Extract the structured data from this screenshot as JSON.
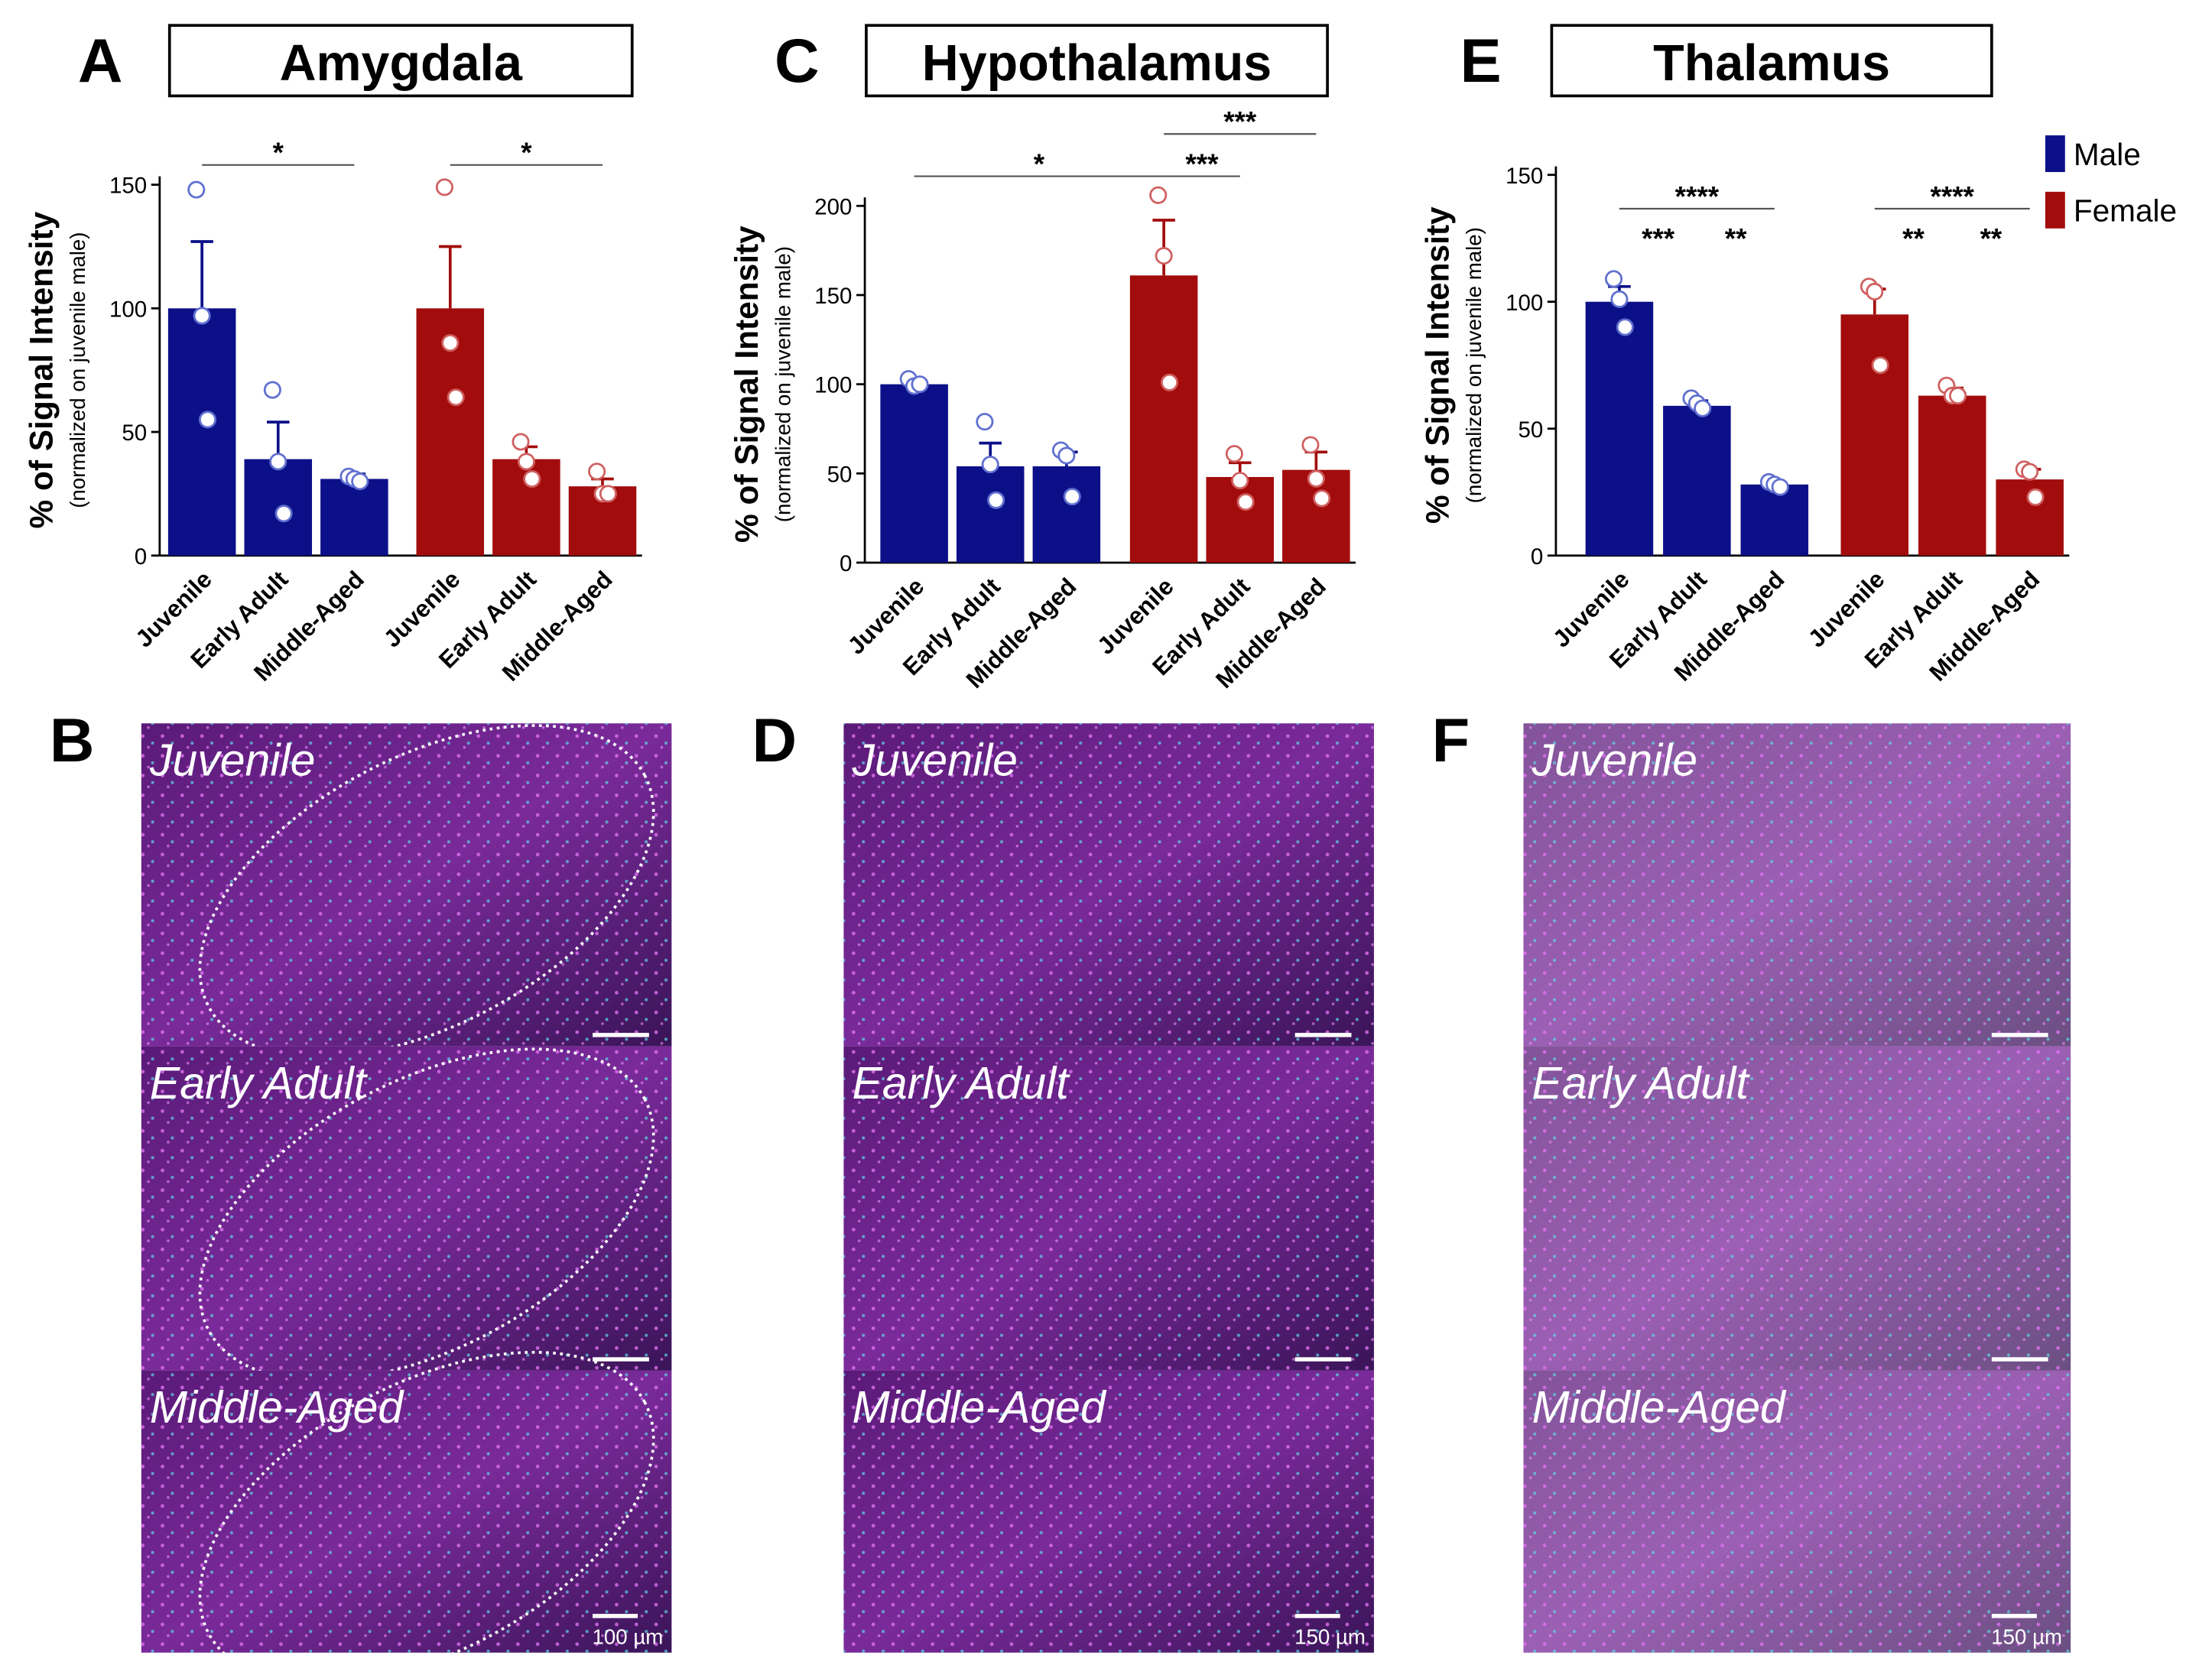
{
  "chart_data": [
    {
      "type": "bar",
      "panel": "A",
      "title": "Amygdala",
      "ylabel": "% of Signal Intensity",
      "ylabel_sub": "(normalized on juvenile male)",
      "categories": [
        "Juvenile",
        "Early Adult",
        "Middle-Aged"
      ],
      "ylim": [
        0,
        150
      ],
      "yticks": [
        0,
        50,
        100,
        150
      ],
      "legend": false,
      "series": [
        {
          "name": "Male",
          "color": "#0c1088",
          "values": [
            100,
            39,
            31
          ],
          "errors": [
            27,
            15,
            2
          ],
          "points": [
            [
              148,
              97,
              55
            ],
            [
              67,
              38,
              17
            ],
            [
              32,
              31,
              30
            ]
          ]
        },
        {
          "name": "Female",
          "color": "#a30c0c",
          "values": [
            100,
            39,
            28
          ],
          "errors": [
            25,
            5,
            3
          ],
          "points": [
            [
              149,
              86,
              64
            ],
            [
              46,
              38,
              31
            ],
            [
              34,
              25,
              25
            ]
          ]
        }
      ],
      "significance": [
        {
          "label": "*",
          "bars": [
            0,
            2
          ],
          "bracket": true
        },
        {
          "label": "*",
          "bars": [
            3,
            5
          ],
          "bracket": true
        }
      ]
    },
    {
      "type": "bar",
      "panel": "C",
      "title": "Hypothalamus",
      "ylabel": "% of Signal Intensity",
      "ylabel_sub": "(normalized on juvenile male)",
      "categories": [
        "Juvenile",
        "Early Adult",
        "Middle-Aged"
      ],
      "ylim": [
        0,
        200
      ],
      "yticks": [
        0,
        50,
        100,
        150,
        200
      ],
      "legend": false,
      "series": [
        {
          "name": "Male",
          "color": "#0c1088",
          "values": [
            100,
            54,
            54
          ],
          "errors": [
            3,
            13,
            8
          ],
          "points": [
            [
              103,
              99,
              100
            ],
            [
              79,
              55,
              35
            ],
            [
              63,
              60,
              37
            ]
          ]
        },
        {
          "name": "Female",
          "color": "#a30c0c",
          "values": [
            161,
            48,
            52
          ],
          "errors": [
            31,
            8,
            10
          ],
          "points": [
            [
              206,
              172,
              101
            ],
            [
              61,
              46,
              34
            ],
            [
              66,
              47,
              36
            ]
          ]
        }
      ],
      "significance": [
        {
          "label": "*",
          "bars": [
            0,
            3
          ],
          "bracket": true
        },
        {
          "label": "***",
          "bars": [
            3,
            4
          ],
          "bracket": true
        },
        {
          "label": "***",
          "bars": [
            3,
            5
          ],
          "bracket": true
        }
      ]
    },
    {
      "type": "bar",
      "panel": "E",
      "title": "Thalamus",
      "ylabel": "% of Signal Intensity",
      "ylabel_sub": "(normalized on juvenile male)",
      "categories": [
        "Juvenile",
        "Early Adult",
        "Middle-Aged"
      ],
      "ylim": [
        0,
        150
      ],
      "yticks": [
        0,
        50,
        100,
        150
      ],
      "legend": true,
      "series": [
        {
          "name": "Male",
          "color": "#0c1088",
          "values": [
            100,
            59,
            28
          ],
          "errors": [
            6,
            2,
            1
          ],
          "points": [
            [
              109,
              101,
              90
            ],
            [
              62,
              60,
              58
            ],
            [
              29,
              28,
              27
            ]
          ]
        },
        {
          "name": "Female",
          "color": "#a30c0c",
          "values": [
            95,
            63,
            30
          ],
          "errors": [
            10,
            3,
            4
          ],
          "points": [
            [
              106,
              104,
              75
            ],
            [
              67,
              63,
              63
            ],
            [
              34,
              33,
              23
            ]
          ]
        }
      ],
      "significance": [
        {
          "label": "***",
          "bars": [
            0,
            1
          ],
          "bracket": false
        },
        {
          "label": "**",
          "bars": [
            1,
            2
          ],
          "bracket": false
        },
        {
          "label": "****",
          "bars": [
            0,
            2
          ],
          "bracket": true
        },
        {
          "label": "**",
          "bars": [
            3,
            4
          ],
          "bracket": false
        },
        {
          "label": "**",
          "bars": [
            4,
            5
          ],
          "bracket": false
        },
        {
          "label": "****",
          "bars": [
            3,
            5
          ],
          "bracket": true
        }
      ]
    }
  ],
  "images": [
    {
      "panel": "B",
      "labels": [
        "Juvenile",
        "Early Adult",
        "Middle-Aged"
      ],
      "scale": "100 µm"
    },
    {
      "panel": "D",
      "labels": [
        "Juvenile",
        "Early Adult",
        "Middle-Aged"
      ],
      "scale": "150 µm"
    },
    {
      "panel": "F",
      "labels": [
        "Juvenile",
        "Early Adult",
        "Middle-Aged"
      ],
      "scale": "150 µm"
    }
  ]
}
